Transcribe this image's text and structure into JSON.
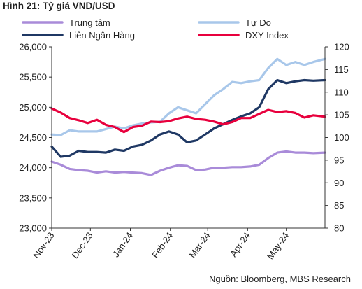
{
  "figure": {
    "title": "Hình 21: Tỷ giá VND/USD",
    "source": "Nguồn: Bloomberg, MBS Research"
  },
  "chart_data": {
    "type": "line",
    "title": "Hình 21: Tỷ giá VND/USD",
    "x_axis": {
      "tick_labels": [
        "Nov-23",
        "Dec-23",
        "Jan-24",
        "Feb-24",
        "Mar-24",
        "Apr-24",
        "May-24"
      ],
      "range": [
        "2023-11-01",
        "2024-05-31"
      ]
    },
    "y_axis_left": {
      "ylim": [
        23000,
        26000
      ],
      "tick_labels": [
        "23,000",
        "23,500",
        "24,000",
        "24,500",
        "25,000",
        "25,500",
        "26,000"
      ]
    },
    "y_axis_right": {
      "ylim": [
        80,
        120
      ],
      "tick_labels": [
        "80",
        "85",
        "90",
        "95",
        "100",
        "105",
        "110",
        "115",
        "120"
      ]
    },
    "grid": false,
    "legend_position": "top",
    "series": [
      {
        "name": "Trung tâm",
        "axis": "left",
        "color": "#a98bd9",
        "points": [
          [
            "2023-11-01",
            24100
          ],
          [
            "2023-11-08",
            24050
          ],
          [
            "2023-11-15",
            23980
          ],
          [
            "2023-11-22",
            23960
          ],
          [
            "2023-11-29",
            23950
          ],
          [
            "2023-12-06",
            23920
          ],
          [
            "2023-12-13",
            23940
          ],
          [
            "2023-12-20",
            23920
          ],
          [
            "2023-12-27",
            23930
          ],
          [
            "2024-01-03",
            23920
          ],
          [
            "2024-01-10",
            23910
          ],
          [
            "2024-01-17",
            23880
          ],
          [
            "2024-01-24",
            23950
          ],
          [
            "2024-01-31",
            24000
          ],
          [
            "2024-02-07",
            24040
          ],
          [
            "2024-02-14",
            24030
          ],
          [
            "2024-02-21",
            23960
          ],
          [
            "2024-02-28",
            23970
          ],
          [
            "2024-03-06",
            24000
          ],
          [
            "2024-03-13",
            24000
          ],
          [
            "2024-03-20",
            24010
          ],
          [
            "2024-03-27",
            24010
          ],
          [
            "2024-04-03",
            24020
          ],
          [
            "2024-04-10",
            24050
          ],
          [
            "2024-04-17",
            24160
          ],
          [
            "2024-04-24",
            24250
          ],
          [
            "2024-05-01",
            24270
          ],
          [
            "2024-05-08",
            24250
          ],
          [
            "2024-05-15",
            24250
          ],
          [
            "2024-05-22",
            24240
          ],
          [
            "2024-05-31",
            24250
          ]
        ]
      },
      {
        "name": "Tự Do",
        "axis": "left",
        "color": "#a8c7ea",
        "points": [
          [
            "2023-11-01",
            24550
          ],
          [
            "2023-11-08",
            24540
          ],
          [
            "2023-11-15",
            24620
          ],
          [
            "2023-11-22",
            24600
          ],
          [
            "2023-11-29",
            24600
          ],
          [
            "2023-12-06",
            24600
          ],
          [
            "2023-12-13",
            24640
          ],
          [
            "2023-12-20",
            24680
          ],
          [
            "2023-12-27",
            24650
          ],
          [
            "2024-01-03",
            24700
          ],
          [
            "2024-01-10",
            24730
          ],
          [
            "2024-01-17",
            24750
          ],
          [
            "2024-01-24",
            24760
          ],
          [
            "2024-01-31",
            24900
          ],
          [
            "2024-02-07",
            25000
          ],
          [
            "2024-02-14",
            24950
          ],
          [
            "2024-02-21",
            24900
          ],
          [
            "2024-02-28",
            25050
          ],
          [
            "2024-03-06",
            25200
          ],
          [
            "2024-03-13",
            25300
          ],
          [
            "2024-03-20",
            25420
          ],
          [
            "2024-03-27",
            25400
          ],
          [
            "2024-04-03",
            25430
          ],
          [
            "2024-04-10",
            25450
          ],
          [
            "2024-04-17",
            25650
          ],
          [
            "2024-04-24",
            25800
          ],
          [
            "2024-05-01",
            25700
          ],
          [
            "2024-05-08",
            25750
          ],
          [
            "2024-05-15",
            25700
          ],
          [
            "2024-05-22",
            25750
          ],
          [
            "2024-05-31",
            25800
          ]
        ]
      },
      {
        "name": "Liên Ngân Hàng",
        "axis": "left",
        "color": "#1f3864",
        "points": [
          [
            "2023-11-01",
            24350
          ],
          [
            "2023-11-08",
            24180
          ],
          [
            "2023-11-15",
            24200
          ],
          [
            "2023-11-22",
            24280
          ],
          [
            "2023-11-29",
            24260
          ],
          [
            "2023-12-06",
            24260
          ],
          [
            "2023-12-13",
            24250
          ],
          [
            "2023-12-20",
            24300
          ],
          [
            "2023-12-27",
            24280
          ],
          [
            "2024-01-03",
            24350
          ],
          [
            "2024-01-10",
            24380
          ],
          [
            "2024-01-17",
            24450
          ],
          [
            "2024-01-24",
            24550
          ],
          [
            "2024-01-31",
            24600
          ],
          [
            "2024-02-07",
            24550
          ],
          [
            "2024-02-14",
            24420
          ],
          [
            "2024-02-21",
            24450
          ],
          [
            "2024-02-28",
            24550
          ],
          [
            "2024-03-06",
            24650
          ],
          [
            "2024-03-13",
            24720
          ],
          [
            "2024-03-20",
            24790
          ],
          [
            "2024-03-27",
            24850
          ],
          [
            "2024-04-03",
            24900
          ],
          [
            "2024-04-10",
            25000
          ],
          [
            "2024-04-17",
            25300
          ],
          [
            "2024-04-24",
            25450
          ],
          [
            "2024-05-01",
            25400
          ],
          [
            "2024-05-08",
            25430
          ],
          [
            "2024-05-15",
            25450
          ],
          [
            "2024-05-22",
            25440
          ],
          [
            "2024-05-31",
            25450
          ]
        ]
      },
      {
        "name": "DXY Index",
        "axis": "right",
        "color": "#e8003d",
        "points": [
          [
            "2023-11-01",
            106.4
          ],
          [
            "2023-11-08",
            105.5
          ],
          [
            "2023-11-15",
            104.3
          ],
          [
            "2023-11-22",
            103.8
          ],
          [
            "2023-11-29",
            103.2
          ],
          [
            "2023-12-06",
            103.9
          ],
          [
            "2023-12-13",
            102.8
          ],
          [
            "2023-12-20",
            102.3
          ],
          [
            "2023-12-27",
            101.2
          ],
          [
            "2024-01-03",
            102.3
          ],
          [
            "2024-01-10",
            102.6
          ],
          [
            "2024-01-17",
            103.5
          ],
          [
            "2024-01-24",
            103.4
          ],
          [
            "2024-01-31",
            103.6
          ],
          [
            "2024-02-07",
            104.2
          ],
          [
            "2024-02-14",
            104.6
          ],
          [
            "2024-02-21",
            104.1
          ],
          [
            "2024-02-28",
            103.9
          ],
          [
            "2024-03-06",
            103.5
          ],
          [
            "2024-03-13",
            102.9
          ],
          [
            "2024-03-20",
            103.4
          ],
          [
            "2024-03-27",
            104.3
          ],
          [
            "2024-04-03",
            104.3
          ],
          [
            "2024-04-10",
            105.2
          ],
          [
            "2024-04-17",
            106.1
          ],
          [
            "2024-04-24",
            105.6
          ],
          [
            "2024-05-01",
            105.8
          ],
          [
            "2024-05-08",
            105.4
          ],
          [
            "2024-05-15",
            104.4
          ],
          [
            "2024-05-22",
            104.9
          ],
          [
            "2024-05-31",
            104.6
          ]
        ]
      }
    ]
  }
}
